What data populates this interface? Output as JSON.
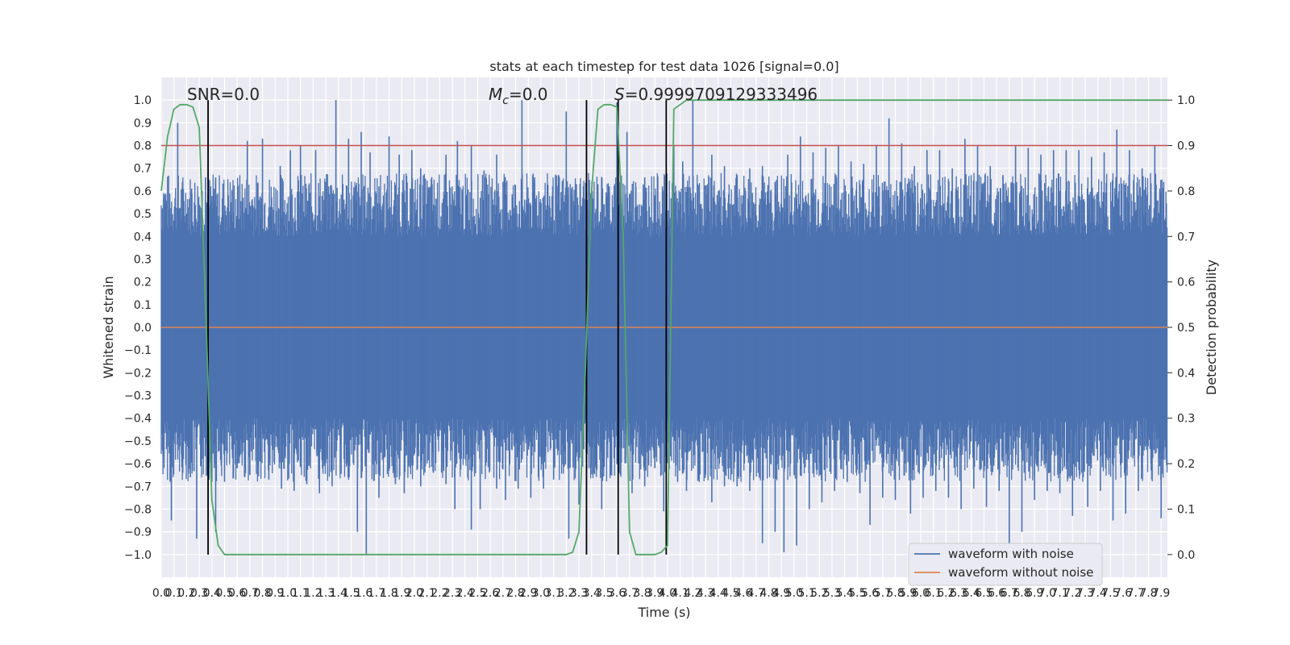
{
  "chart_data": {
    "type": "line",
    "title": "stats at each timestep for test data 1026 [signal=0.0]",
    "xlabel": "Time (s)",
    "ylabel": "Whitened strain",
    "y2label": "Detection probability",
    "xlim": [
      0.0,
      7.95
    ],
    "ylim": [
      -1.1,
      1.1
    ],
    "y2lim": [
      -0.05,
      1.05
    ],
    "grid": true,
    "legend_position": "bottom-right",
    "x_ticks": [
      "0.0",
      "0.1",
      "0.2",
      "0.3",
      "0.4",
      "0.5",
      "0.6",
      "0.7",
      "0.8",
      "0.9",
      "1.0",
      "1.1",
      "1.2",
      "1.3",
      "1.4",
      "1.5",
      "1.6",
      "1.7",
      "1.8",
      "1.9",
      "2.0",
      "2.1",
      "2.2",
      "2.3",
      "2.4",
      "2.5",
      "2.6",
      "2.7",
      "2.8",
      "2.9",
      "3.0",
      "3.1",
      "3.2",
      "3.3",
      "3.4",
      "3.5",
      "3.6",
      "3.7",
      "3.8",
      "3.9",
      "4.0",
      "4.1",
      "4.2",
      "4.3",
      "4.4",
      "4.5",
      "4.6",
      "4.7",
      "4.8",
      "4.9",
      "5.0",
      "5.1",
      "5.2",
      "5.3",
      "5.4",
      "5.5",
      "5.6",
      "5.7",
      "5.8",
      "5.9",
      "6.0",
      "6.1",
      "6.2",
      "6.3",
      "6.4",
      "6.5",
      "6.6",
      "6.7",
      "6.8",
      "6.9",
      "7.0",
      "7.1",
      "7.2",
      "7.3",
      "7.4",
      "7.5",
      "7.6",
      "7.7",
      "7.8",
      "7.9"
    ],
    "y_ticks": [
      "1.0",
      "0.9",
      "0.8",
      "0.7",
      "0.6",
      "0.5",
      "0.4",
      "0.3",
      "0.2",
      "0.1",
      "0.0",
      "−0.1",
      "−0.2",
      "−0.3",
      "−0.4",
      "−0.5",
      "−0.6",
      "−0.7",
      "−0.8",
      "−0.9",
      "−1.0"
    ],
    "y2_ticks": [
      "1.0",
      "0.9",
      "0.8",
      "0.7",
      "0.6",
      "0.5",
      "0.4",
      "0.3",
      "0.2",
      "0.1",
      "0.0"
    ],
    "annotations": {
      "snr": "SNR=0.0",
      "mc_symbol": "M",
      "mc_sub": "c",
      "mc_value": "=0.0",
      "s_symbol": "S",
      "s_value": "=0.9999709129333496"
    },
    "series": [
      {
        "name": "waveform with noise",
        "color": "#4c72b0",
        "kind": "noise",
        "values_note_rows": []
      },
      {
        "name": "waveform without noise",
        "color": "#dd8452",
        "kind": "flat",
        "values": [
          0.0
        ]
      }
    ],
    "threshold": {
      "y2": 0.9,
      "color": "#c44e52"
    },
    "detection_probability": {
      "color": "#55a868",
      "x": [
        0.0,
        0.05,
        0.1,
        0.15,
        0.2,
        0.25,
        0.3,
        0.35,
        0.4,
        0.45,
        0.5,
        0.55,
        0.6,
        0.65,
        0.7,
        0.75,
        0.8,
        1.5,
        2.0,
        2.5,
        3.0,
        3.2,
        3.25,
        3.3,
        3.35,
        3.4,
        3.45,
        3.5,
        3.55,
        3.6,
        3.65,
        3.7,
        3.75,
        3.8,
        3.85,
        3.9,
        3.95,
        4.0,
        4.05,
        4.1,
        4.15,
        4.2,
        4.3,
        4.5,
        5.0,
        6.0,
        7.0,
        7.95
      ],
      "y": [
        0.8,
        0.92,
        0.98,
        0.99,
        0.99,
        0.985,
        0.94,
        0.55,
        0.12,
        0.02,
        0.0,
        0.0,
        0.0,
        0.0,
        0.0,
        0.0,
        0.0,
        0.0,
        0.0,
        0.0,
        0.0,
        0.0,
        0.005,
        0.05,
        0.4,
        0.8,
        0.98,
        0.99,
        0.99,
        0.985,
        0.7,
        0.05,
        0.0,
        0.0,
        0.0,
        0.0,
        0.005,
        0.02,
        0.98,
        0.99,
        1.0,
        1.0,
        1.0,
        1.0,
        1.0,
        1.0,
        1.0,
        1.0
      ]
    },
    "vertical_markers_x": [
      0.37,
      3.36,
      3.61,
      3.99
    ],
    "noise_envelope": {
      "upper_base": 0.4,
      "lower_base": -0.4,
      "spikes_up": [
        [
          0.02,
          0.59
        ],
        [
          0.1,
          0.47
        ],
        [
          0.13,
          0.9
        ],
        [
          0.2,
          0.5
        ],
        [
          0.24,
          0.61
        ],
        [
          0.3,
          0.54
        ],
        [
          0.35,
          0.66
        ],
        [
          0.43,
          0.66
        ],
        [
          0.53,
          0.58
        ],
        [
          0.62,
          0.63
        ],
        [
          0.68,
          0.82
        ],
        [
          0.8,
          0.83
        ],
        [
          0.94,
          0.71
        ],
        [
          1.02,
          0.78
        ],
        [
          1.1,
          0.8
        ],
        [
          1.22,
          0.78
        ],
        [
          1.3,
          0.64
        ],
        [
          1.38,
          1.0
        ],
        [
          1.48,
          0.83
        ],
        [
          1.58,
          0.86
        ],
        [
          1.65,
          0.77
        ],
        [
          1.72,
          0.62
        ],
        [
          1.8,
          0.84
        ],
        [
          1.88,
          0.76
        ],
        [
          1.98,
          0.78
        ],
        [
          2.05,
          0.7
        ],
        [
          2.14,
          0.63
        ],
        [
          2.25,
          0.76
        ],
        [
          2.34,
          0.82
        ],
        [
          2.45,
          0.8
        ],
        [
          2.55,
          0.69
        ],
        [
          2.65,
          0.76
        ],
        [
          2.72,
          0.64
        ],
        [
          2.85,
          1.0
        ],
        [
          2.95,
          0.66
        ],
        [
          3.05,
          0.63
        ],
        [
          3.14,
          0.67
        ],
        [
          3.2,
          0.95
        ],
        [
          3.28,
          0.63
        ],
        [
          3.33,
          0.57
        ],
        [
          3.45,
          0.63
        ],
        [
          3.54,
          0.62
        ],
        [
          3.6,
          0.99
        ],
        [
          3.68,
          0.86
        ],
        [
          3.75,
          0.62
        ],
        [
          3.82,
          0.66
        ],
        [
          3.9,
          0.58
        ],
        [
          3.96,
          0.62
        ],
        [
          4.05,
          0.8
        ],
        [
          4.12,
          0.73
        ],
        [
          4.2,
          1.0
        ],
        [
          4.35,
          0.76
        ],
        [
          4.45,
          0.71
        ],
        [
          4.55,
          0.67
        ],
        [
          4.65,
          0.7
        ],
        [
          4.75,
          0.71
        ],
        [
          4.85,
          0.64
        ],
        [
          4.95,
          0.76
        ],
        [
          5.05,
          0.84
        ],
        [
          5.15,
          0.77
        ],
        [
          5.25,
          0.79
        ],
        [
          5.35,
          0.8
        ],
        [
          5.45,
          0.73
        ],
        [
          5.55,
          0.72
        ],
        [
          5.65,
          0.8
        ],
        [
          5.75,
          0.92
        ],
        [
          5.85,
          0.81
        ],
        [
          5.95,
          0.71
        ],
        [
          6.05,
          0.78
        ],
        [
          6.15,
          0.78
        ],
        [
          6.25,
          0.7
        ],
        [
          6.35,
          0.83
        ],
        [
          6.45,
          0.8
        ],
        [
          6.55,
          0.71
        ],
        [
          6.65,
          0.67
        ],
        [
          6.75,
          0.8
        ],
        [
          6.85,
          0.79
        ],
        [
          6.95,
          0.76
        ],
        [
          7.05,
          0.78
        ],
        [
          7.15,
          0.78
        ],
        [
          7.25,
          0.78
        ],
        [
          7.35,
          0.75
        ],
        [
          7.45,
          0.77
        ],
        [
          7.55,
          0.87
        ],
        [
          7.65,
          0.78
        ],
        [
          7.75,
          0.7
        ],
        [
          7.85,
          0.8
        ],
        [
          7.92,
          0.64
        ]
      ],
      "spikes_down": [
        [
          0.02,
          -0.57
        ],
        [
          0.07,
          -0.68
        ],
        [
          0.08,
          -0.85
        ],
        [
          0.16,
          -0.56
        ],
        [
          0.23,
          -0.66
        ],
        [
          0.28,
          -0.93
        ],
        [
          0.4,
          -0.68
        ],
        [
          0.43,
          -0.9
        ],
        [
          0.5,
          -0.68
        ],
        [
          0.6,
          -0.62
        ],
        [
          0.7,
          -0.65
        ],
        [
          0.78,
          -0.59
        ],
        [
          0.85,
          -0.67
        ],
        [
          0.95,
          -0.71
        ],
        [
          1.05,
          -0.72
        ],
        [
          1.15,
          -0.69
        ],
        [
          1.25,
          -0.73
        ],
        [
          1.35,
          -0.7
        ],
        [
          1.45,
          -0.6
        ],
        [
          1.55,
          -0.9
        ],
        [
          1.62,
          -1.0
        ],
        [
          1.72,
          -0.75
        ],
        [
          1.85,
          -0.69
        ],
        [
          1.92,
          -0.73
        ],
        [
          2.05,
          -0.7
        ],
        [
          2.15,
          -0.64
        ],
        [
          2.25,
          -0.69
        ],
        [
          2.32,
          -0.8
        ],
        [
          2.45,
          -0.89
        ],
        [
          2.52,
          -0.8
        ],
        [
          2.65,
          -0.71
        ],
        [
          2.72,
          -0.76
        ],
        [
          2.82,
          -0.71
        ],
        [
          2.92,
          -0.75
        ],
        [
          3.02,
          -0.71
        ],
        [
          3.1,
          -0.67
        ],
        [
          3.22,
          -0.93
        ],
        [
          3.3,
          -0.78
        ],
        [
          3.38,
          -0.62
        ],
        [
          3.48,
          -0.8
        ],
        [
          3.55,
          -0.65
        ],
        [
          3.62,
          -0.53
        ],
        [
          3.72,
          -0.73
        ],
        [
          3.82,
          -0.7
        ],
        [
          3.9,
          -0.62
        ],
        [
          3.97,
          -0.81
        ],
        [
          4.08,
          -0.68
        ],
        [
          4.15,
          -0.72
        ],
        [
          4.25,
          -0.68
        ],
        [
          4.35,
          -0.77
        ],
        [
          4.45,
          -0.7
        ],
        [
          4.55,
          -0.7
        ],
        [
          4.65,
          -0.72
        ],
        [
          4.75,
          -0.95
        ],
        [
          4.85,
          -0.9
        ],
        [
          4.92,
          -0.99
        ],
        [
          5.02,
          -0.96
        ],
        [
          5.12,
          -0.8
        ],
        [
          5.22,
          -0.77
        ],
        [
          5.32,
          -0.72
        ],
        [
          5.42,
          -0.68
        ],
        [
          5.52,
          -0.73
        ],
        [
          5.6,
          -0.87
        ],
        [
          5.7,
          -0.75
        ],
        [
          5.8,
          -0.76
        ],
        [
          5.92,
          -0.82
        ],
        [
          6.02,
          -0.75
        ],
        [
          6.12,
          -0.72
        ],
        [
          6.22,
          -0.75
        ],
        [
          6.32,
          -0.8
        ],
        [
          6.42,
          -0.71
        ],
        [
          6.52,
          -0.79
        ],
        [
          6.62,
          -0.72
        ],
        [
          6.7,
          -0.96
        ],
        [
          6.8,
          -0.9
        ],
        [
          6.9,
          -0.76
        ],
        [
          7.0,
          -0.72
        ],
        [
          7.1,
          -0.73
        ],
        [
          7.2,
          -0.83
        ],
        [
          7.32,
          -0.79
        ],
        [
          7.42,
          -0.72
        ],
        [
          7.52,
          -0.85
        ],
        [
          7.62,
          -0.82
        ],
        [
          7.72,
          -0.72
        ],
        [
          7.82,
          -0.6
        ],
        [
          7.9,
          -0.84
        ]
      ]
    }
  }
}
